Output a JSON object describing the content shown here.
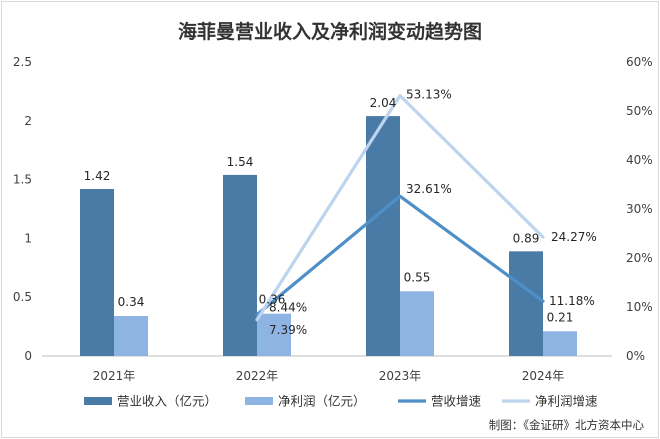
{
  "chart_data": {
    "type": "bar",
    "title": "海菲曼营业收入及净利润变动趋势图",
    "categories": [
      "2021年",
      "2022年",
      "2023年",
      "2024年"
    ],
    "y_left": {
      "ylim": [
        0,
        2.5
      ],
      "ticks": [
        "0",
        "0.5",
        "1",
        "1.5",
        "2",
        "2.5"
      ]
    },
    "y_right": {
      "ylim": [
        0,
        60
      ],
      "ticks": [
        "0%",
        "10%",
        "20%",
        "30%",
        "40%",
        "50%",
        "60%"
      ]
    },
    "series": [
      {
        "name": "营业收入（亿元）",
        "kind": "bar",
        "axis": "left",
        "color": "#4a7ba7",
        "values": [
          1.42,
          1.54,
          2.04,
          0.89
        ],
        "labels": [
          "1.42",
          "1.54",
          "2.04",
          "0.89"
        ]
      },
      {
        "name": "净利润（亿元）",
        "kind": "bar",
        "axis": "left",
        "color": "#8eb4e3",
        "values": [
          0.34,
          0.36,
          0.55,
          0.21
        ],
        "labels": [
          "0.34",
          "0.36",
          "0.55",
          "0.21"
        ]
      },
      {
        "name": "营收增速",
        "kind": "line",
        "axis": "right",
        "color": "#4e8fc8",
        "values": [
          null,
          8.44,
          32.61,
          11.18
        ],
        "labels": [
          "",
          "8.44%",
          "32.61%",
          "11.18%"
        ]
      },
      {
        "name": "净利润增速",
        "kind": "line",
        "axis": "right",
        "color": "#bdd4ee",
        "values": [
          null,
          7.39,
          53.13,
          24.27
        ],
        "labels": [
          "",
          "7.39%",
          "53.13%",
          "24.27%"
        ]
      }
    ],
    "legend": "bottom",
    "grid": false
  },
  "credit": "制图：《金证研》北方资本中心"
}
